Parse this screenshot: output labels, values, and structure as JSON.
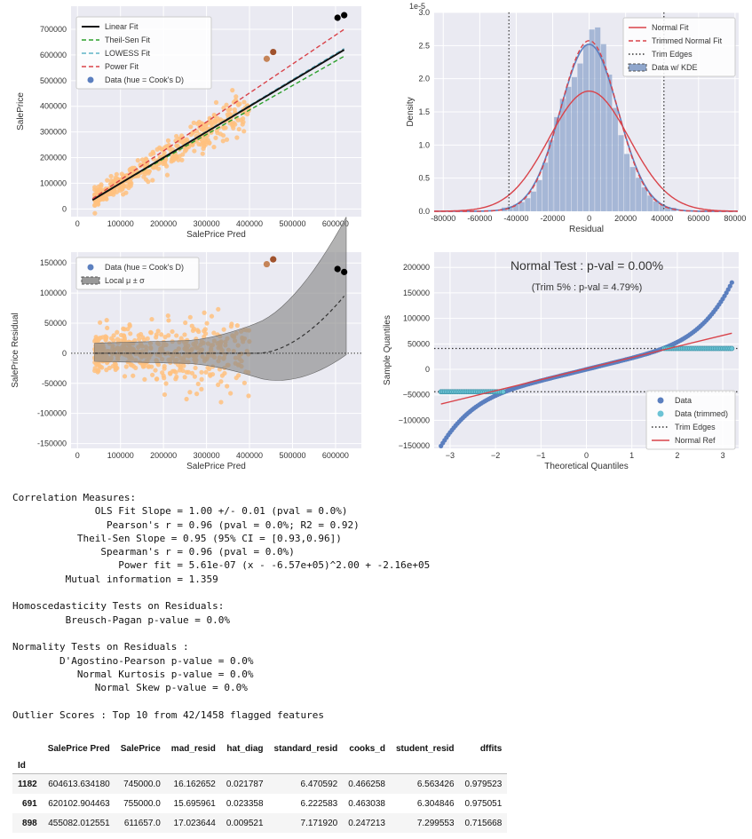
{
  "colors": {
    "axes_bg": "#eaeaf2",
    "points": "#ffc17f",
    "linear": "#111111",
    "theilsen": "#2ca02c",
    "lowess": "#5fb3c7",
    "power": "#d9434a",
    "blue": "#5b7fbf",
    "hist": "#8fa6cc",
    "band": "#8a8a8a"
  },
  "chart_data": [
    {
      "type": "scatter",
      "xlabel": "SalePrice Pred",
      "ylabel": "SalePrice",
      "xlim": [
        -15000,
        660000
      ],
      "ylim": [
        -30000,
        790000
      ],
      "xticks": [
        0,
        100000,
        200000,
        300000,
        400000,
        500000,
        600000
      ],
      "yticks": [
        0,
        100000,
        200000,
        300000,
        400000,
        500000,
        600000,
        700000
      ],
      "legend": {
        "placement": "top-left",
        "entries": [
          "Linear Fit",
          "Theil-Sen Fit",
          "LOWESS Fit",
          "Power Fit",
          "Data (hue = Cook's D)"
        ]
      },
      "fits": {
        "linear": [
          [
            35000,
            35000
          ],
          [
            620000,
            620000
          ]
        ],
        "theilsen": [
          [
            35000,
            38000
          ],
          [
            620000,
            595000
          ]
        ],
        "lowess": [
          [
            35000,
            35000
          ],
          [
            620000,
            625000
          ]
        ],
        "power": [
          [
            35000,
            40000
          ],
          [
            620000,
            700000
          ]
        ]
      },
      "highlight_points": [
        [
          604614,
          745000
        ],
        [
          620103,
          755000
        ],
        [
          455082,
          611657
        ],
        [
          440000,
          585000
        ]
      ],
      "grid": true
    },
    {
      "type": "histogram",
      "xlabel": "Residual",
      "ylabel": "Density",
      "scale_label": "1e-5",
      "xlim": [
        -85000,
        82000
      ],
      "ylim": [
        0,
        3.0
      ],
      "xticks": [
        -80000,
        -60000,
        -40000,
        -20000,
        0,
        20000,
        40000,
        60000,
        80000
      ],
      "yticks": [
        0.0,
        0.5,
        1.0,
        1.5,
        2.0,
        2.5,
        3.0
      ],
      "trim_edges": [
        -44000,
        41000
      ],
      "normal_fit": {
        "mu": 0,
        "sigma": 22000
      },
      "trimmed_normal_fit": {
        "mu": 0,
        "sigma": 15500
      },
      "legend": {
        "placement": "top-right",
        "entries": [
          "Normal Fit",
          "Trimmed Normal Fit",
          "Trim Edges",
          "Data w/ KDE"
        ]
      },
      "grid": true
    },
    {
      "type": "scatter",
      "xlabel": "SalePrice Pred",
      "ylabel": "SalePrice Residual",
      "xlim": [
        -15000,
        660000
      ],
      "ylim": [
        -158000,
        168000
      ],
      "xticks": [
        0,
        100000,
        200000,
        300000,
        400000,
        500000,
        600000
      ],
      "yticks": [
        -150000,
        -100000,
        -50000,
        0,
        50000,
        100000,
        150000
      ],
      "legend": {
        "placement": "top-left",
        "entries": [
          "Data (hue = Cook's D)",
          "Local μ ± σ"
        ]
      },
      "highlight_points": [
        [
          604614,
          140000
        ],
        [
          620103,
          135000
        ],
        [
          455082,
          156000
        ],
        [
          440000,
          148000
        ]
      ],
      "grid": true
    },
    {
      "type": "scatter",
      "xlabel": "Theoretical Quantiles",
      "ylabel": "Sample Quantiles",
      "title": "Normal Test : p-val = 0.00%",
      "subtitle": "(Trim 5% : p-val = 4.79%)",
      "xlim": [
        -3.35,
        3.35
      ],
      "ylim": [
        -155000,
        230000
      ],
      "xticks": [
        -3,
        -2,
        -1,
        0,
        1,
        2,
        3
      ],
      "yticks": [
        -150000,
        -100000,
        -50000,
        0,
        50000,
        100000,
        150000,
        200000
      ],
      "trim_edges": [
        -44000,
        41000
      ],
      "normal_ref": [
        [
          -3.2,
          -68000
        ],
        [
          3.2,
          71000
        ]
      ],
      "legend": {
        "placement": "bottom-right",
        "entries": [
          "Data",
          "Data (trimmed)",
          "Trim Edges",
          "Normal Ref"
        ]
      },
      "grid": true
    }
  ],
  "report_lines": [
    "Correlation Measures:",
    "              OLS Fit Slope = 1.00 +/- 0.01 (pval = 0.0%)",
    "                Pearson's r = 0.96 (pval = 0.0%; R2 = 0.92)",
    "           Theil-Sen Slope = 0.95 (95% CI = [0.93,0.96])",
    "               Spearman's r = 0.96 (pval = 0.0%)",
    "                  Power fit = 5.61e-07 (x - -6.57e+05)^2.00 + -2.16e+05",
    "         Mutual information = 1.359",
    "",
    "Homoscedasticity Tests on Residuals:",
    "         Breusch-Pagan p-value = 0.0%",
    "",
    "Normality Tests on Residuals :",
    "        D'Agostino-Pearson p-value = 0.0%",
    "           Normal Kurtosis p-value = 0.0%",
    "              Normal Skew p-value = 0.0%",
    "",
    "Outlier Scores : Top 10 from 42/1458 flagged features"
  ],
  "table": {
    "index_name": "Id",
    "columns": [
      "SalePrice Pred",
      "SalePrice",
      "mad_resid",
      "hat_diag",
      "standard_resid",
      "cooks_d",
      "student_resid",
      "dffits"
    ],
    "rows": [
      {
        "id": "1182",
        "values": [
          "604613.634180",
          "745000.0",
          "16.162652",
          "0.021787",
          "6.470592",
          "0.466258",
          "6.563426",
          "0.979523"
        ]
      },
      {
        "id": "691",
        "values": [
          "620102.904463",
          "755000.0",
          "15.695961",
          "0.023358",
          "6.222583",
          "0.463038",
          "6.304846",
          "0.975051"
        ]
      },
      {
        "id": "898",
        "values": [
          "455082.012551",
          "611657.0",
          "17.023644",
          "0.009521",
          "7.171920",
          "0.247213",
          "7.299553",
          "0.715668"
        ]
      }
    ]
  }
}
